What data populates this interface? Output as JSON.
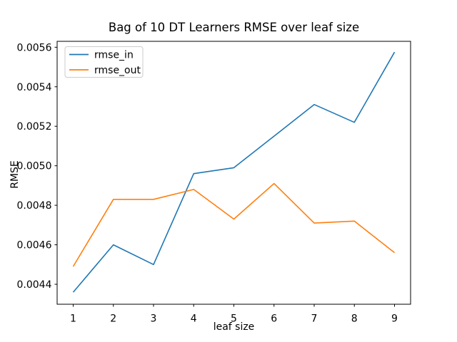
{
  "colors": {
    "background": "#ffffff",
    "axes_spine": "#000000",
    "text": "#000000",
    "legend_border": "#cccccc",
    "series_blue": "#1f77b4",
    "series_orange": "#ff7f0e"
  },
  "chart_data": {
    "type": "line",
    "title": "Bag of 10 DT Learners RMSE over leaf size",
    "xlabel": "leaf size",
    "ylabel": "RMSE",
    "grid": false,
    "x": [
      1,
      2,
      3,
      4,
      5,
      6,
      7,
      8,
      9
    ],
    "series": [
      {
        "name": "rmse_in",
        "color": "#1f77b4",
        "values": [
          0.00436,
          0.0046,
          0.0045,
          0.00496,
          0.00499,
          0.00515,
          0.00531,
          0.00522,
          0.005575
        ]
      },
      {
        "name": "rmse_out",
        "color": "#ff7f0e",
        "values": [
          0.00449,
          0.00483,
          0.00483,
          0.00488,
          0.00473,
          0.00491,
          0.00471,
          0.00472,
          0.00456
        ]
      }
    ],
    "xlim": [
      0.6,
      9.4
    ],
    "ylim": [
      0.004299,
      0.00563
    ],
    "xticks": [
      1,
      2,
      3,
      4,
      5,
      6,
      7,
      8,
      9
    ],
    "xtick_labels": [
      "1",
      "2",
      "3",
      "4",
      "5",
      "6",
      "7",
      "8",
      "9"
    ],
    "yticks": [
      0.0044,
      0.0046,
      0.0048,
      0.005,
      0.0052,
      0.0054,
      0.0056
    ],
    "ytick_labels": [
      "0.0044",
      "0.0046",
      "0.0048",
      "0.0050",
      "0.0052",
      "0.0054",
      "0.0056"
    ],
    "legend": {
      "position": "upper left",
      "entries": [
        "rmse_in",
        "rmse_out"
      ]
    }
  }
}
